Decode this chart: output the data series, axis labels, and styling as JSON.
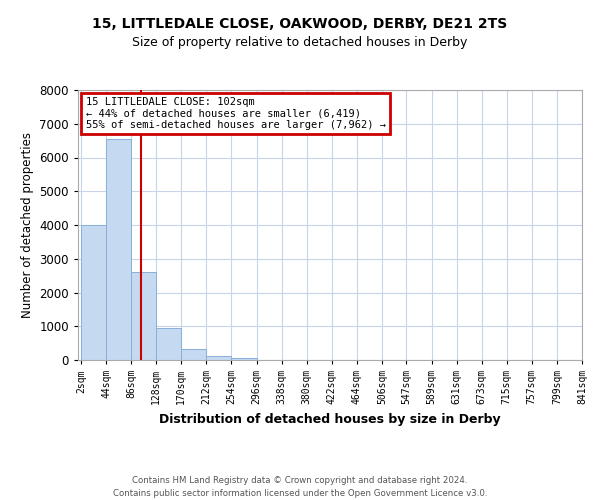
{
  "title": "15, LITTLEDALE CLOSE, OAKWOOD, DERBY, DE21 2TS",
  "subtitle": "Size of property relative to detached houses in Derby",
  "xlabel": "Distribution of detached houses by size in Derby",
  "ylabel": "Number of detached properties",
  "bin_edges": [
    2,
    44,
    86,
    128,
    170,
    212,
    254,
    296,
    338,
    380,
    422,
    464,
    506,
    547,
    589,
    631,
    673,
    715,
    757,
    799,
    841
  ],
  "bar_heights": [
    4000,
    6550,
    2600,
    950,
    320,
    120,
    50,
    0,
    0,
    0,
    0,
    0,
    0,
    0,
    0,
    0,
    0,
    0,
    0,
    0
  ],
  "bar_color": "#c5d9f1",
  "bar_edge_color": "#8ab0d8",
  "property_line_x": 102,
  "property_line_color": "#cc0000",
  "ylim": [
    0,
    8000
  ],
  "yticks": [
    0,
    1000,
    2000,
    3000,
    4000,
    5000,
    6000,
    7000,
    8000
  ],
  "annotation_title": "15 LITTLEDALE CLOSE: 102sqm",
  "annotation_line1": "← 44% of detached houses are smaller (6,419)",
  "annotation_line2": "55% of semi-detached houses are larger (7,962) →",
  "annotation_box_color": "#cc0000",
  "annotation_text_color": "#000000",
  "background_color": "#ffffff",
  "grid_color": "#c8d4e8",
  "footer_line1": "Contains HM Land Registry data © Crown copyright and database right 2024.",
  "footer_line2": "Contains public sector information licensed under the Open Government Licence v3.0.",
  "tick_labels": [
    "2sqm",
    "44sqm",
    "86sqm",
    "128sqm",
    "170sqm",
    "212sqm",
    "254sqm",
    "296sqm",
    "338sqm",
    "380sqm",
    "422sqm",
    "464sqm",
    "506sqm",
    "547sqm",
    "589sqm",
    "631sqm",
    "673sqm",
    "715sqm",
    "757sqm",
    "799sqm",
    "841sqm"
  ]
}
